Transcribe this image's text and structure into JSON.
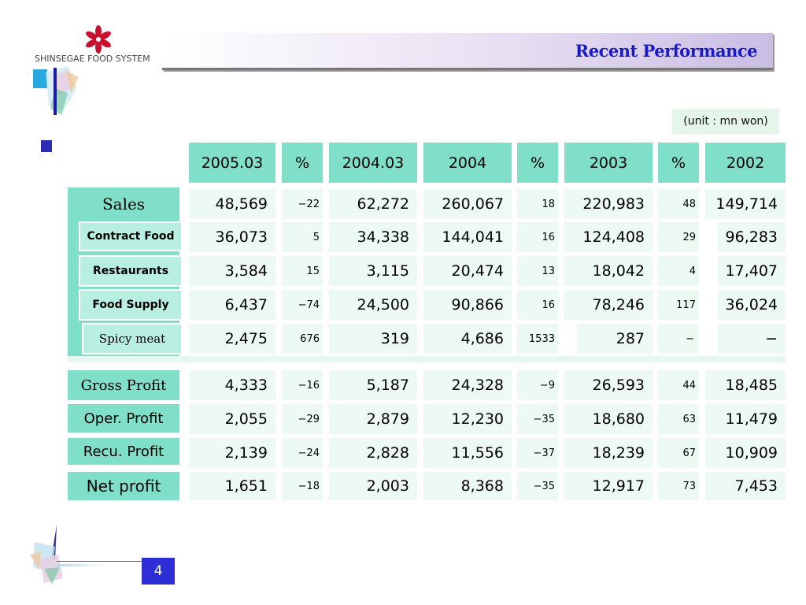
{
  "logo": {
    "text": "SHINSEGAE FOOD SYSTEM"
  },
  "header": {
    "title": "Recent Performance"
  },
  "unit_note": "(unit : mn won)",
  "page_number": "4",
  "table": {
    "columns": [
      "2005.03",
      "%",
      "2004.03",
      "2004",
      "%",
      "2003",
      "%",
      "2002"
    ],
    "rows": [
      {
        "label": "Sales",
        "values": [
          "48,569",
          "−22",
          "62,272",
          "260,067",
          "18",
          "220,983",
          "48",
          "149,714"
        ]
      },
      {
        "label": "Contract Food",
        "values": [
          "36,073",
          "5",
          "34,338",
          "144,041",
          "16",
          "124,408",
          "29",
          "96,283"
        ]
      },
      {
        "label": "Restaurants",
        "values": [
          "3,584",
          "15",
          "3,115",
          "20,474",
          "13",
          "18,042",
          "4",
          "17,407"
        ]
      },
      {
        "label": "Food Supply",
        "values": [
          "6,437",
          "−74",
          "24,500",
          "90,866",
          "16",
          "78,246",
          "117",
          "36,024"
        ]
      },
      {
        "label": "Spicy meat",
        "values": [
          "2,475",
          "676",
          "319",
          "4,686",
          "1533",
          "287",
          "−",
          "−"
        ]
      },
      {
        "label": "Gross Profit",
        "values": [
          "4,333",
          "−16",
          "5,187",
          "24,328",
          "−9",
          "26,593",
          "44",
          "18,485"
        ]
      },
      {
        "label": "Oper. Profit",
        "values": [
          "2,055",
          "−29",
          "2,879",
          "12,230",
          "−35",
          "18,680",
          "63",
          "11,479"
        ]
      },
      {
        "label": "Recu. Profit",
        "values": [
          "2,139",
          "−24",
          "2,828",
          "11,556",
          "−37",
          "18,239",
          "67",
          "10,909"
        ]
      },
      {
        "label": "Net profit",
        "values": [
          "1,651",
          "−18",
          "2,003",
          "8,368",
          "−35",
          "12,917",
          "73",
          "7,453"
        ]
      }
    ]
  },
  "colors": {
    "header_cell": "#7fdfc8",
    "value_cell": "#ecfaf3",
    "title": "#1a1acc",
    "page_number_bg": "#2e2ed6"
  }
}
